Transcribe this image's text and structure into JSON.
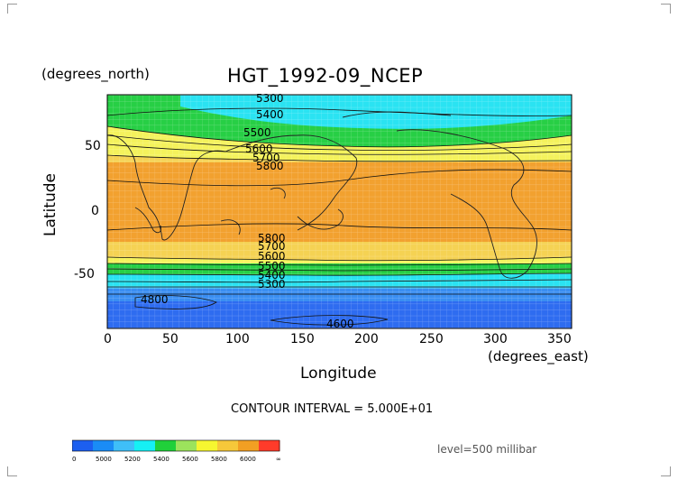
{
  "figure": {
    "title": "HGT_1992-09_NCEP",
    "y_units": "(degrees_north)",
    "x_units": "(degrees_east)",
    "ylabel": "Latitude",
    "xlabel": "Longitude",
    "contour_interval": "CONTOUR INTERVAL = 5.000E+01",
    "level": "level=500 millibar"
  },
  "axes": {
    "x_ticks": [
      "0",
      "50",
      "100",
      "150",
      "200",
      "250",
      "300",
      "350"
    ],
    "y_ticks": [
      "50",
      "0",
      "-50"
    ]
  },
  "contour_labels": [
    "5300",
    "5400",
    "5500",
    "5600",
    "5700",
    "5800",
    "5800",
    "5700",
    "5600",
    "5500",
    "5400",
    "5300",
    "4800",
    "4600"
  ],
  "colorbar": {
    "labels": [
      "0",
      "5000",
      "5200",
      "5400",
      "5600",
      "5800",
      "6000",
      "∞"
    ],
    "colors": [
      "#1c5ff0",
      "#1a8cf5",
      "#3fbff8",
      "#16f0f4",
      "#20d03a",
      "#9ce35c",
      "#f6f630",
      "#f6c83a",
      "#f29f23",
      "#ff3b2a"
    ]
  },
  "map_bands": [
    {
      "color": "#2e6cf0"
    },
    {
      "color": "#3a8ef2"
    },
    {
      "color": "#4cbff3"
    },
    {
      "color": "#2ae3f2"
    },
    {
      "color": "#27cf45"
    },
    {
      "color": "#f4f25c"
    },
    {
      "color": "#f5d253"
    },
    {
      "color": "#f2a12f"
    }
  ]
}
